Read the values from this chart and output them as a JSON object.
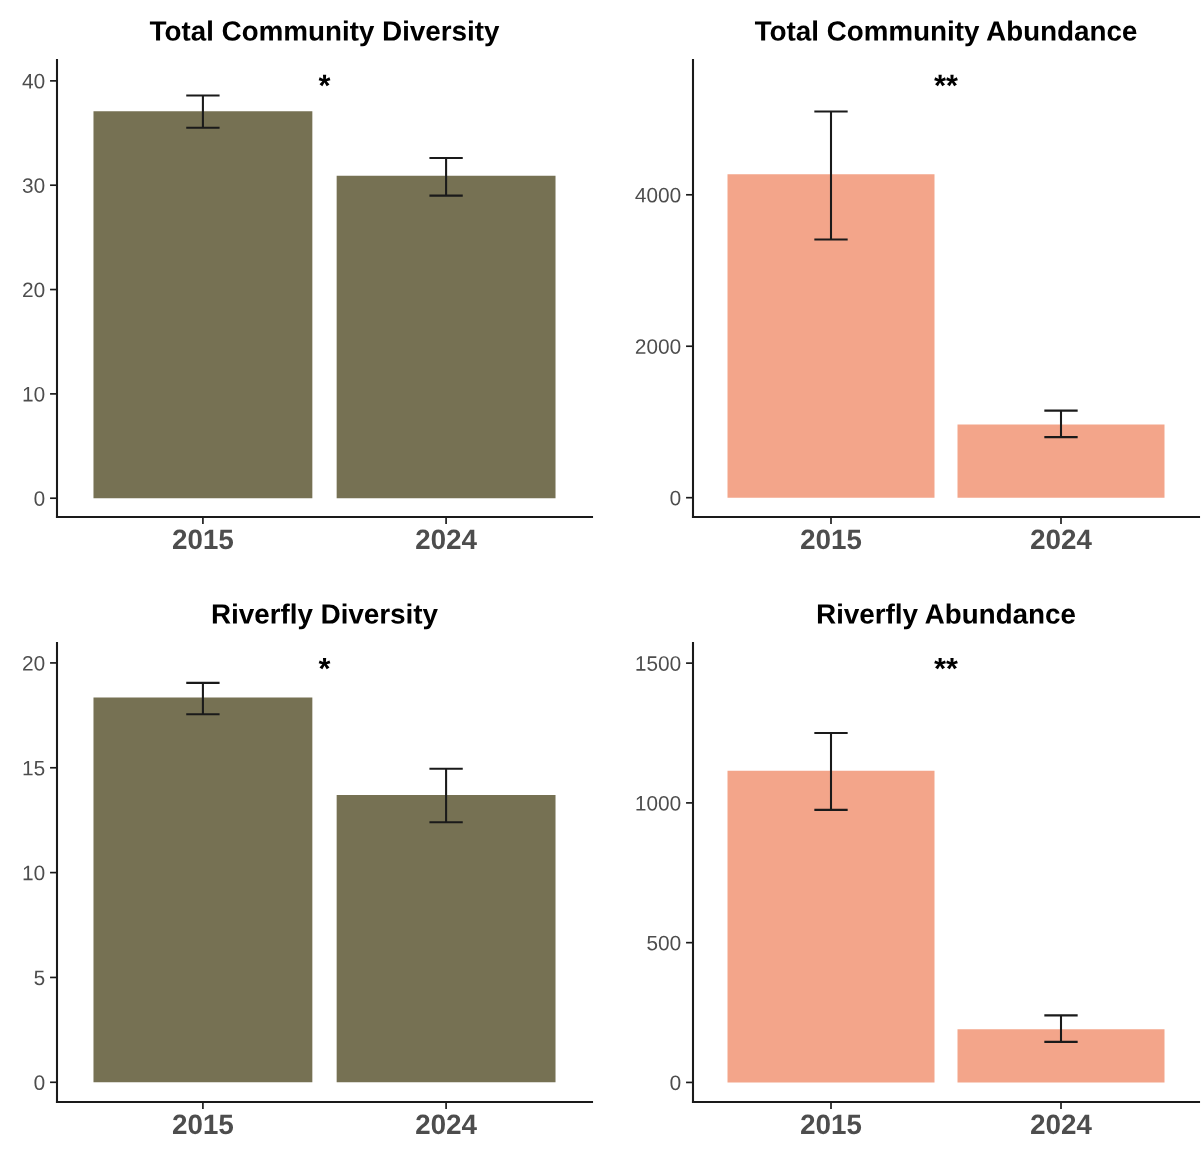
{
  "chart_data": [
    {
      "type": "bar",
      "title": "Total Community Diversity",
      "categories": [
        "2015",
        "2024"
      ],
      "values": [
        37.1,
        30.9
      ],
      "errors": [
        [
          35.5,
          38.6
        ],
        [
          29.0,
          32.6
        ]
      ],
      "color": "#767153",
      "ylim": [
        -1.8,
        42
      ],
      "yticks": [
        0,
        10,
        20,
        30,
        40
      ],
      "grid": false,
      "annotations": [
        "*"
      ]
    },
    {
      "type": "bar",
      "title": "Total Community Abundance",
      "categories": [
        "2015",
        "2024"
      ],
      "values": [
        4270,
        965
      ],
      "errors": [
        [
          3410,
          5100
        ],
        [
          800,
          1150
        ]
      ],
      "color": "#f3a58a",
      "ylim": [
        -255,
        5780
      ],
      "yticks": [
        0,
        2000,
        4000
      ],
      "grid": false,
      "annotations": [
        "**"
      ]
    },
    {
      "type": "bar",
      "title": "Riverfly Diversity",
      "categories": [
        "2015",
        "2024"
      ],
      "values": [
        18.35,
        13.7
      ],
      "errors": [
        [
          17.55,
          19.05
        ],
        [
          12.4,
          14.95
        ]
      ],
      "color": "#767153",
      "ylim": [
        -0.94,
        20.95
      ],
      "yticks": [
        0,
        5,
        10,
        15,
        20
      ],
      "grid": false,
      "annotations": [
        "*"
      ]
    },
    {
      "type": "bar",
      "title": "Riverfly Abundance",
      "categories": [
        "2015",
        "2024"
      ],
      "values": [
        1115,
        190
      ],
      "errors": [
        [
          975,
          1250
        ],
        [
          145,
          240
        ]
      ],
      "color": "#f3a58a",
      "ylim": [
        -70,
        1572
      ],
      "yticks": [
        0,
        500,
        1000,
        1500
      ],
      "grid": false,
      "annotations": [
        "**"
      ]
    }
  ]
}
